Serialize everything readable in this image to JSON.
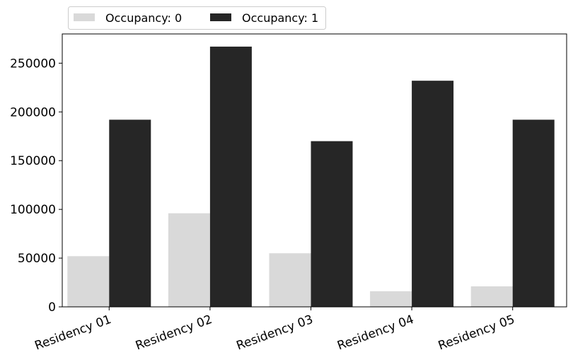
{
  "chart_data": {
    "type": "bar",
    "title": "",
    "xlabel": "",
    "ylabel": "",
    "categories": [
      "Residency 01",
      "Residency 02",
      "Residency 03",
      "Residency 04",
      "Residency 05"
    ],
    "series": [
      {
        "name": "Occupancy: 0",
        "color": "#d9d9d9",
        "values": [
          52000,
          96000,
          55000,
          16000,
          21000
        ]
      },
      {
        "name": "Occupancy: 1",
        "color": "#262626",
        "values": [
          192000,
          267000,
          170000,
          232000,
          192000
        ]
      }
    ],
    "ylim": [
      0,
      280000
    ],
    "yticks": [
      0,
      50000,
      100000,
      150000,
      200000,
      250000
    ],
    "ytick_labels": [
      "0",
      "50000",
      "100000",
      "150000",
      "200000",
      "250000"
    ],
    "grid": false,
    "legend": {
      "placement": "top-left, above plot",
      "columns": 2
    }
  }
}
